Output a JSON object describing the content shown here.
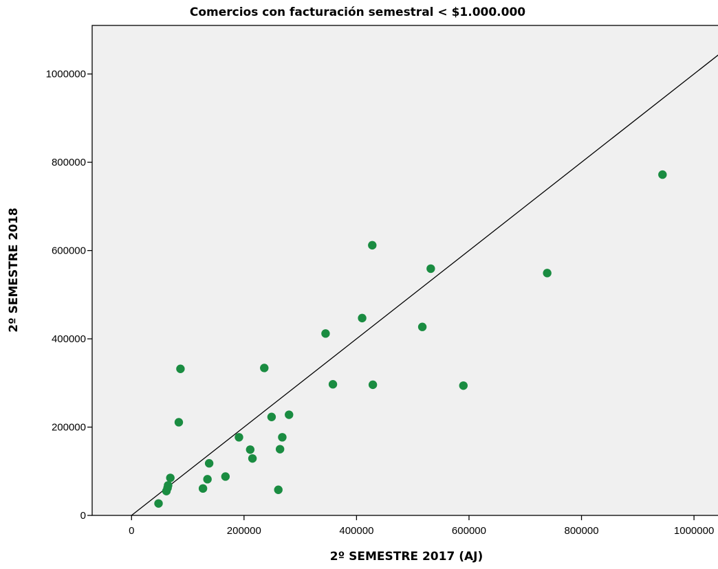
{
  "chart_data": {
    "type": "scatter",
    "title": "Comercios con facturación semestral < $1.000.000",
    "xlabel": "2º SEMESTRE 2017 (AJ)",
    "ylabel": "2º SEMESTRE 2018",
    "xlim": [
      -70000,
      1050000
    ],
    "ylim": [
      0,
      1110000
    ],
    "x_ticks": [
      0,
      200000,
      400000,
      600000,
      800000,
      1000000
    ],
    "y_ticks": [
      0,
      200000,
      400000,
      600000,
      800000,
      1000000
    ],
    "x_tick_labels": [
      "0",
      "200000",
      "400000",
      "600000",
      "800000",
      "1000000"
    ],
    "y_tick_labels": [
      "0",
      "200000",
      "400000",
      "600000",
      "800000",
      "1000000"
    ],
    "grid": false,
    "marker_color": "#1a8c41",
    "background_color": "#f0f0f0",
    "reference_line": {
      "from": [
        0,
        0
      ],
      "to": [
        1050000,
        1050000
      ]
    },
    "points": [
      {
        "x": 48000,
        "y": 27000
      },
      {
        "x": 62000,
        "y": 55000
      },
      {
        "x": 64000,
        "y": 62000
      },
      {
        "x": 65000,
        "y": 68000
      },
      {
        "x": 69000,
        "y": 85000
      },
      {
        "x": 84000,
        "y": 211000
      },
      {
        "x": 87000,
        "y": 332000
      },
      {
        "x": 127000,
        "y": 61000
      },
      {
        "x": 135000,
        "y": 82000
      },
      {
        "x": 138000,
        "y": 118000
      },
      {
        "x": 167000,
        "y": 88000
      },
      {
        "x": 191000,
        "y": 177000
      },
      {
        "x": 211000,
        "y": 149000
      },
      {
        "x": 215000,
        "y": 129000
      },
      {
        "x": 236000,
        "y": 334000
      },
      {
        "x": 249000,
        "y": 223000
      },
      {
        "x": 261000,
        "y": 58000
      },
      {
        "x": 264000,
        "y": 150000
      },
      {
        "x": 268000,
        "y": 177000
      },
      {
        "x": 280000,
        "y": 228000
      },
      {
        "x": 345000,
        "y": 412000
      },
      {
        "x": 358000,
        "y": 297000
      },
      {
        "x": 410000,
        "y": 447000
      },
      {
        "x": 428000,
        "y": 612000
      },
      {
        "x": 429000,
        "y": 296000
      },
      {
        "x": 517000,
        "y": 427000
      },
      {
        "x": 532000,
        "y": 559000
      },
      {
        "x": 590000,
        "y": 294000
      },
      {
        "x": 739000,
        "y": 549000
      },
      {
        "x": 944000,
        "y": 772000
      }
    ]
  }
}
